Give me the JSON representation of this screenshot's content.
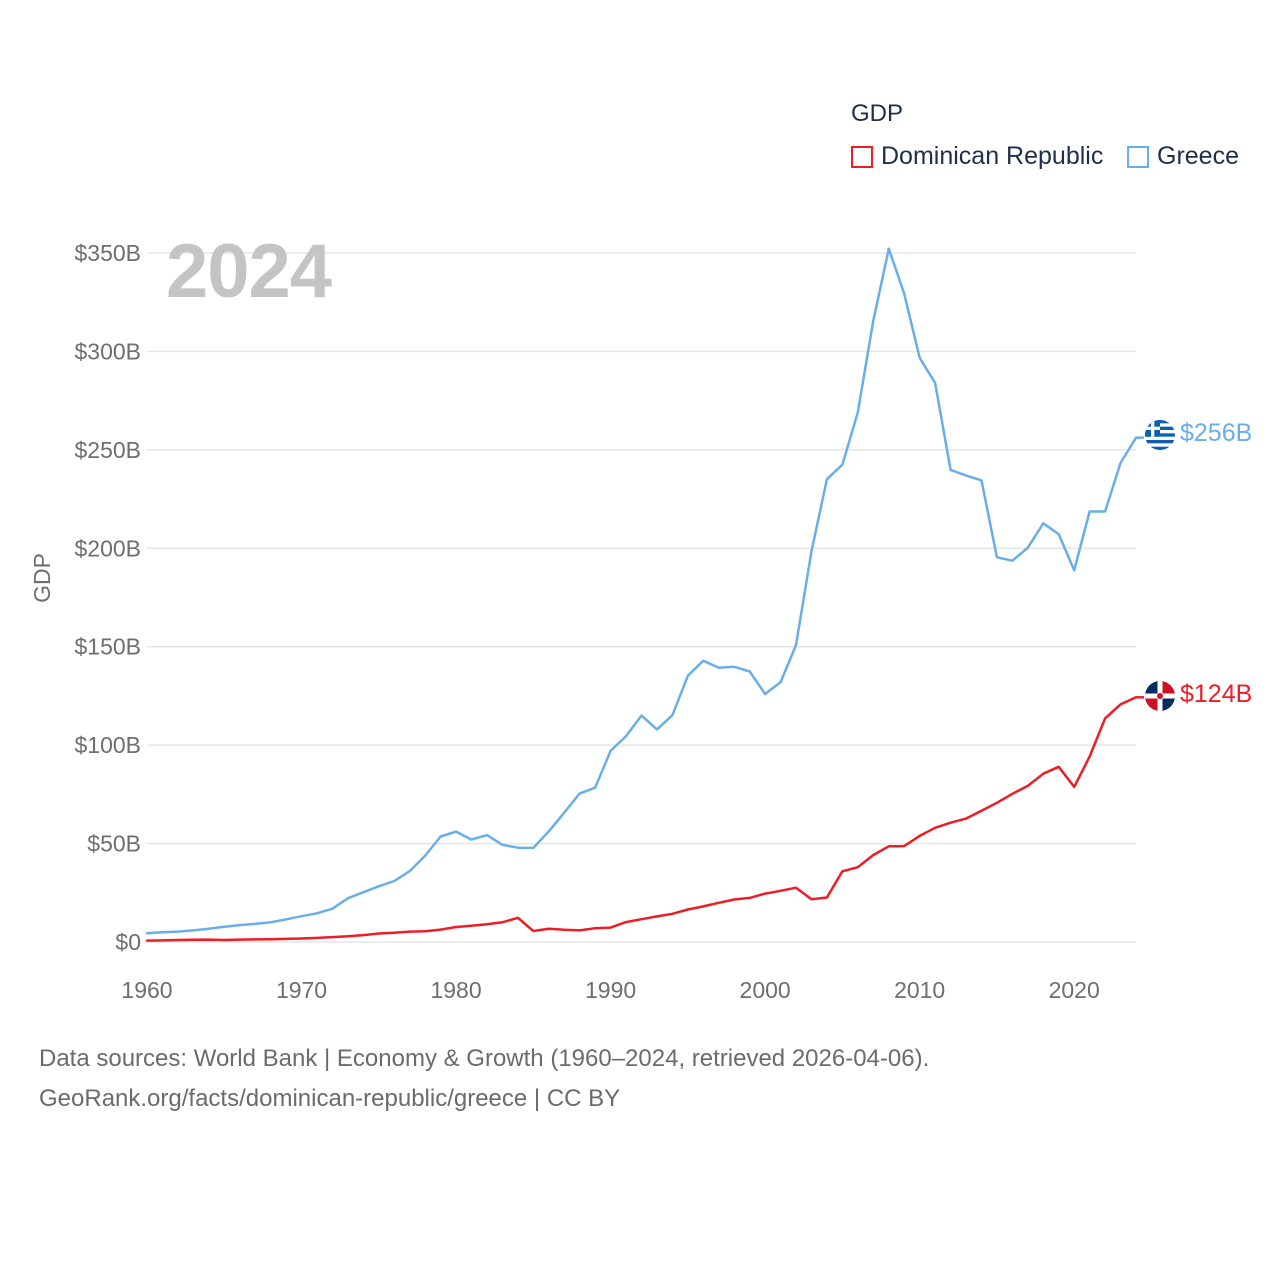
{
  "chart_data": {
    "type": "line",
    "title": "GDP",
    "highlight_year": "2024",
    "xlabel": "",
    "ylabel": "GDP",
    "xlim": [
      1960,
      2024
    ],
    "ylim": [
      0,
      350
    ],
    "x_ticks": [
      1960,
      1970,
      1980,
      1990,
      2000,
      2010,
      2020
    ],
    "y_ticks": [
      {
        "value": 0,
        "label": "$0"
      },
      {
        "value": 50,
        "label": "$50B"
      },
      {
        "value": 100,
        "label": "$100B"
      },
      {
        "value": 150,
        "label": "$150B"
      },
      {
        "value": 200,
        "label": "$200B"
      },
      {
        "value": 250,
        "label": "$250B"
      },
      {
        "value": 300,
        "label": "$300B"
      },
      {
        "value": 350,
        "label": "$350B"
      }
    ],
    "grid": true,
    "legend_position": "top-right",
    "x": [
      1960,
      1961,
      1962,
      1963,
      1964,
      1965,
      1966,
      1967,
      1968,
      1969,
      1970,
      1971,
      1972,
      1973,
      1974,
      1975,
      1976,
      1977,
      1978,
      1979,
      1980,
      1981,
      1982,
      1983,
      1984,
      1985,
      1986,
      1987,
      1988,
      1989,
      1990,
      1991,
      1992,
      1993,
      1994,
      1995,
      1996,
      1997,
      1998,
      1999,
      2000,
      2001,
      2002,
      2003,
      2004,
      2005,
      2006,
      2007,
      2008,
      2009,
      2010,
      2011,
      2012,
      2013,
      2014,
      2015,
      2016,
      2017,
      2018,
      2019,
      2020,
      2021,
      2022,
      2023,
      2024
    ],
    "series": [
      {
        "name": "Dominican Republic",
        "color": "#ee1c25",
        "end_label": "$124B",
        "values": [
          0.7,
          0.8,
          1.0,
          1.1,
          1.2,
          1.0,
          1.2,
          1.3,
          1.4,
          1.6,
          1.8,
          2.1,
          2.5,
          2.9,
          3.5,
          4.3,
          4.7,
          5.3,
          5.5,
          6.3,
          7.6,
          8.3,
          9.0,
          10.0,
          12.3,
          5.6,
          6.7,
          6.2,
          5.9,
          7.0,
          7.3,
          10.1,
          11.6,
          13.0,
          14.3,
          16.5,
          18.1,
          19.9,
          21.6,
          22.4,
          24.6,
          26.0,
          27.6,
          21.7,
          22.6,
          35.9,
          38.0,
          44.2,
          48.6,
          48.7,
          53.9,
          58.0,
          60.6,
          62.7,
          66.7,
          70.7,
          75.3,
          79.3,
          85.5,
          89.0,
          78.8,
          94.2,
          113.6,
          120.7,
          124.3
        ]
      },
      {
        "name": "Greece",
        "color": "#6aaee8",
        "end_label": "$256B",
        "values": [
          4.4,
          5.0,
          5.3,
          5.9,
          6.7,
          7.7,
          8.6,
          9.2,
          10.0,
          11.5,
          13.1,
          14.6,
          16.9,
          22.2,
          25.3,
          28.3,
          31.0,
          36.0,
          43.9,
          53.6,
          56.1,
          52.0,
          54.3,
          49.4,
          47.9,
          47.8,
          56.2,
          65.7,
          75.5,
          78.4,
          97.1,
          104.6,
          115.0,
          108.0,
          115.2,
          135.3,
          142.9,
          139.3,
          139.8,
          137.4,
          126.0,
          132.0,
          150.8,
          198.5,
          235.1,
          242.5,
          269.1,
          315.6,
          352.2,
          329.3,
          296.7,
          284.0,
          239.8,
          237.0,
          234.5,
          195.4,
          193.7,
          200.3,
          212.7,
          207.2,
          188.8,
          218.7,
          218.7,
          243.3,
          256.2
        ]
      }
    ]
  },
  "source_line_1": "Data sources: World Bank | Economy & Growth (1960–2024, retrieved 2026-04-06).",
  "source_line_2": "GeoRank.org/facts/dominican-republic/greece | CC BY",
  "colors": {
    "grid": "#e6e6e6",
    "tick": "#6e6e6e",
    "legend_text": "#1f2f4a",
    "watermark": "#c4c4c4"
  },
  "icons": {
    "dr_flag": "dominican-republic-flag-icon",
    "gr_flag": "greece-flag-icon"
  }
}
